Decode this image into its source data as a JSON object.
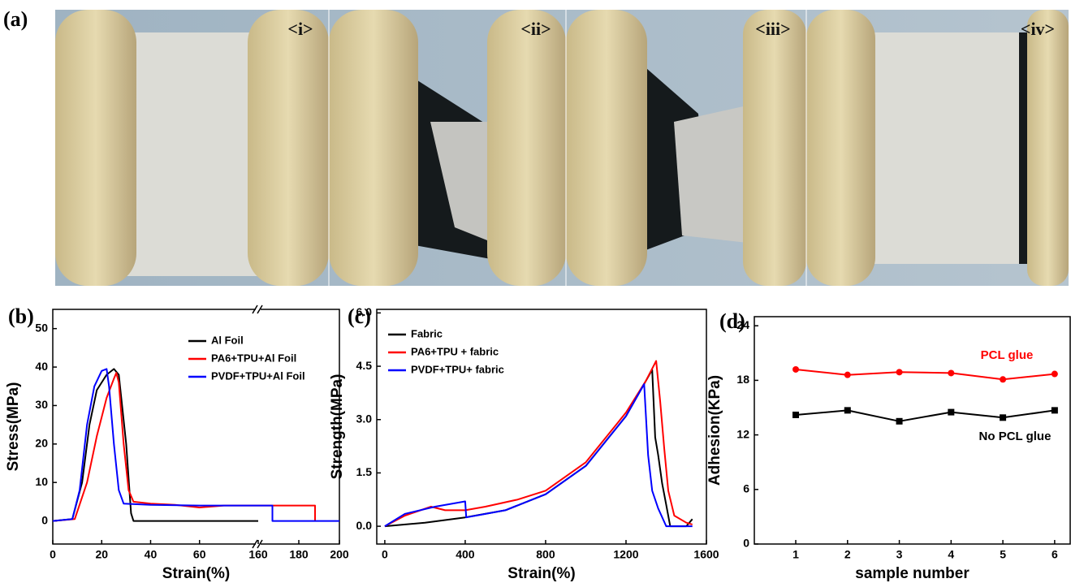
{
  "figure_a": {
    "label": "(a)",
    "photo_labels": [
      "<i>",
      "<ii>",
      "<iii>",
      "<iv>"
    ]
  },
  "chart_data": [
    {
      "type": "line",
      "panel_label": "(b)",
      "xlabel": "Strain(%)",
      "ylabel": "Stress(MPa)",
      "legend": "upper right",
      "x_segments": [
        {
          "xlim": [
            0,
            84
          ],
          "xticks": [
            0,
            20,
            40,
            60
          ]
        },
        {
          "xlim": [
            160,
            200
          ],
          "xticks": [
            160,
            180,
            200
          ]
        }
      ],
      "ylim": [
        -6,
        55
      ],
      "yticks": [
        0,
        10,
        20,
        30,
        40,
        50
      ],
      "series": [
        {
          "name": "Al Foil",
          "color": "#000000",
          "x": [
            0,
            8,
            12,
            15,
            18,
            22,
            25,
            27,
            30,
            32,
            33,
            84
          ],
          "values": [
            0,
            0.5,
            10,
            25,
            34,
            38,
            39.5,
            38,
            20,
            2,
            0,
            0
          ]
        },
        {
          "name": "PA6+TPU+Al Foil",
          "color": "#ff0000",
          "x": [
            0,
            9,
            14,
            18,
            22,
            25,
            26,
            27,
            29,
            31,
            33,
            40,
            50,
            60,
            70,
            84,
            null,
            160,
            188,
            188
          ],
          "values": [
            0,
            0.5,
            10,
            22,
            32,
            37,
            38.5,
            36,
            20,
            8,
            5,
            4.5,
            4.2,
            3.5,
            4,
            4,
            null,
            4,
            4,
            0
          ]
        },
        {
          "name": "PVDF+TPU+Al Foil",
          "color": "#0000ff",
          "x": [
            0,
            8,
            11,
            14,
            17,
            20,
            22,
            23,
            25,
            27,
            29,
            40,
            60,
            84,
            null,
            160,
            167,
            167,
            200
          ],
          "values": [
            0,
            0.5,
            8,
            25,
            35,
            39,
            39.5,
            35,
            20,
            8,
            4.5,
            4.2,
            4,
            4,
            null,
            4,
            4,
            0,
            0
          ]
        }
      ]
    },
    {
      "type": "line",
      "panel_label": "(c)",
      "xlabel": "Strain(%)",
      "ylabel": "Strength(MPa)",
      "legend": "upper left",
      "xlim": [
        -40,
        1600
      ],
      "xticks": [
        0,
        400,
        800,
        1200,
        1600
      ],
      "ylim": [
        -0.5,
        6.1
      ],
      "yticks": [
        {
          "value": 0,
          "label": "0.0"
        },
        {
          "value": 1.5,
          "label": "1.5"
        },
        {
          "value": 3,
          "label": "3.0"
        },
        {
          "value": 4.5,
          "label": "4.5"
        },
        {
          "value": 6,
          "label": "6.0"
        }
      ],
      "series": [
        {
          "name": "Fabric",
          "color": "#000000",
          "x": [
            0,
            200,
            400,
            600,
            800,
            1000,
            1200,
            1300,
            1330,
            1345,
            1360,
            1380,
            1400,
            1420,
            1500,
            1530
          ],
          "values": [
            0,
            0.1,
            0.25,
            0.45,
            0.9,
            1.7,
            3.1,
            4.1,
            4.4,
            2.5,
            2,
            1.2,
            0.6,
            0,
            0,
            0.2
          ]
        },
        {
          "name": "PA6+TPU + fabric",
          "color": "#ff0000",
          "x": [
            0,
            100,
            230,
            300,
            400,
            500,
            660,
            800,
            1000,
            1200,
            1300,
            1350,
            1370,
            1390,
            1410,
            1440,
            1500,
            1530
          ],
          "values": [
            0,
            0.3,
            0.55,
            0.45,
            0.45,
            0.55,
            0.75,
            1,
            1.8,
            3.2,
            4.1,
            4.65,
            3.5,
            2.2,
            1,
            0.3,
            0.1,
            0.05
          ]
        },
        {
          "name": "PVDF+TPU+ fabric",
          "color": "#0000ff",
          "x": [
            0,
            100,
            250,
            400,
            405,
            600,
            800,
            1000,
            1200,
            1290,
            1310,
            1330,
            1360,
            1400,
            1530
          ],
          "values": [
            0,
            0.35,
            0.55,
            0.7,
            0.25,
            0.45,
            0.9,
            1.7,
            3.1,
            4,
            2,
            1,
            0.5,
            0,
            0
          ]
        }
      ]
    },
    {
      "type": "line",
      "panel_label": "(d)",
      "xlabel": "sample number",
      "ylabel": "Adhesion(KPa)",
      "markers": true,
      "xlim": [
        0.2,
        6.3
      ],
      "xticks": [
        1,
        2,
        3,
        4,
        5,
        6
      ],
      "ylim": [
        0,
        25
      ],
      "yticks": [
        0,
        6,
        12,
        18,
        24
      ],
      "series": [
        {
          "name": "PCL glue",
          "color": "#ff0000",
          "marker": "circle",
          "x": [
            1,
            2,
            3,
            4,
            5,
            6
          ],
          "values": [
            19.2,
            18.6,
            18.9,
            18.8,
            18.1,
            18.7
          ]
        },
        {
          "name": "No PCL glue",
          "color": "#000000",
          "marker": "square",
          "x": [
            1,
            2,
            3,
            4,
            5,
            6
          ],
          "values": [
            14.2,
            14.7,
            13.5,
            14.5,
            13.9,
            14.7
          ]
        }
      ]
    }
  ]
}
